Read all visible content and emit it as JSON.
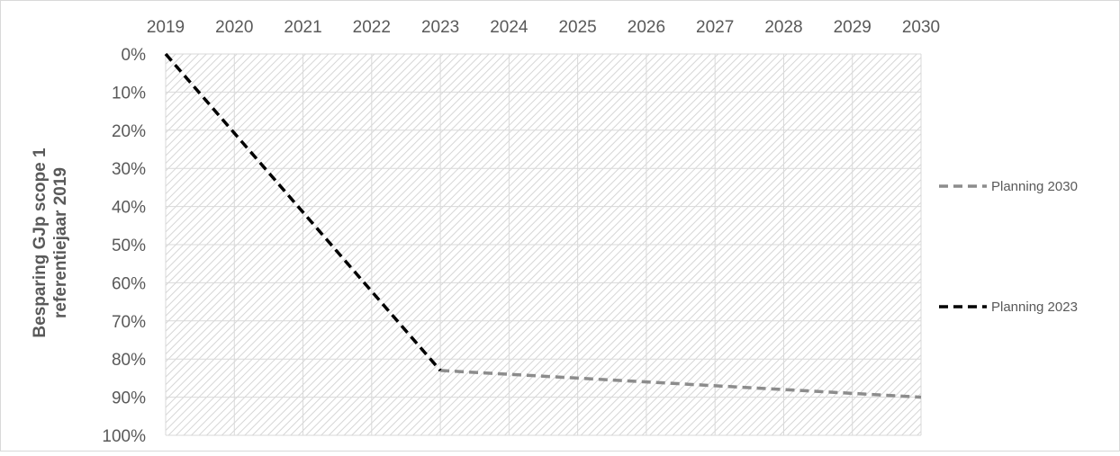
{
  "chart_data": {
    "type": "line",
    "title": "",
    "xlabel": "",
    "ylabel_lines": [
      "Besparing GJp scope 1",
      "referentiejaar 2019"
    ],
    "x": [
      "2019",
      "2020",
      "2021",
      "2022",
      "2023",
      "2024",
      "2025",
      "2026",
      "2027",
      "2028",
      "2029",
      "2030"
    ],
    "y_ticks": [
      "0%",
      "10%",
      "20%",
      "30%",
      "40%",
      "50%",
      "60%",
      "70%",
      "80%",
      "90%",
      "100%"
    ],
    "ylim": [
      0,
      100
    ],
    "y_reversed": true,
    "x_axis_position": "top",
    "grid": true,
    "plot_area_pattern": "diagonal-hatch",
    "legend_position": "right",
    "series": [
      {
        "name": "Planning 2030",
        "color": "#8c8c8c",
        "dash": "dashed",
        "points": [
          {
            "x": "2023",
            "y": 83
          },
          {
            "x": "2024",
            "y": 84
          },
          {
            "x": "2025",
            "y": 85
          },
          {
            "x": "2026",
            "y": 86
          },
          {
            "x": "2027",
            "y": 87
          },
          {
            "x": "2028",
            "y": 88
          },
          {
            "x": "2029",
            "y": 89
          },
          {
            "x": "2030",
            "y": 90
          }
        ]
      },
      {
        "name": "Planning 2023",
        "color": "#000000",
        "dash": "dashed",
        "points": [
          {
            "x": "2019",
            "y": 0
          },
          {
            "x": "2023",
            "y": 83
          }
        ]
      }
    ]
  }
}
